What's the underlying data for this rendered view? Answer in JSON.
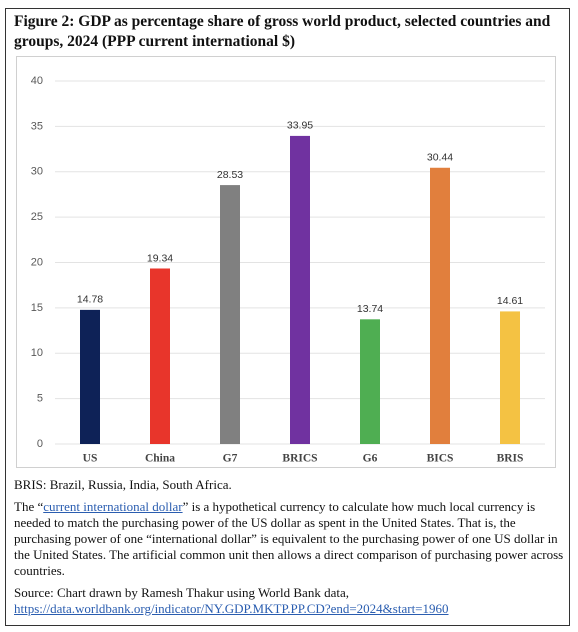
{
  "chart_data": {
    "type": "bar",
    "title": "Figure 2: GDP as percentage share of gross world product, selected countries and groups, 2024 (PPP current international $)",
    "categories": [
      "US",
      "China",
      "G7",
      "BRICS",
      "G6",
      "BICS",
      "BRIS"
    ],
    "values": [
      14.78,
      19.34,
      28.53,
      33.95,
      13.74,
      30.44,
      14.61
    ],
    "colors": [
      "#0e2257",
      "#e8352b",
      "#808080",
      "#7032a0",
      "#4fae52",
      "#e17f3d",
      "#f4c243"
    ],
    "ylim": [
      0,
      40
    ],
    "yticks": [
      0,
      5,
      10,
      15,
      20,
      25,
      30,
      35,
      40
    ],
    "grid": true
  },
  "notes": {
    "abbreviation": "BRIS: Brazil, Russia, India, South Africa.",
    "definition": {
      "before": "The “",
      "link": "current international dollar",
      "after": "” is a hypothetical currency to calculate how much local currency is needed to match the purchasing power of the US dollar as spent in the United States. That is, the purchasing power of one “international dollar” is equivalent to the purchasing power of one US dollar in the United States. The artificial common unit then allows a direct comparison of purchasing power across countries."
    },
    "source": {
      "text": "Source: Chart drawn by Ramesh Thakur using World Bank data,",
      "link": "https://data.worldbank.org/indicator/NY.GDP.MKTP.PP.CD?end=2024&start=1960"
    }
  }
}
